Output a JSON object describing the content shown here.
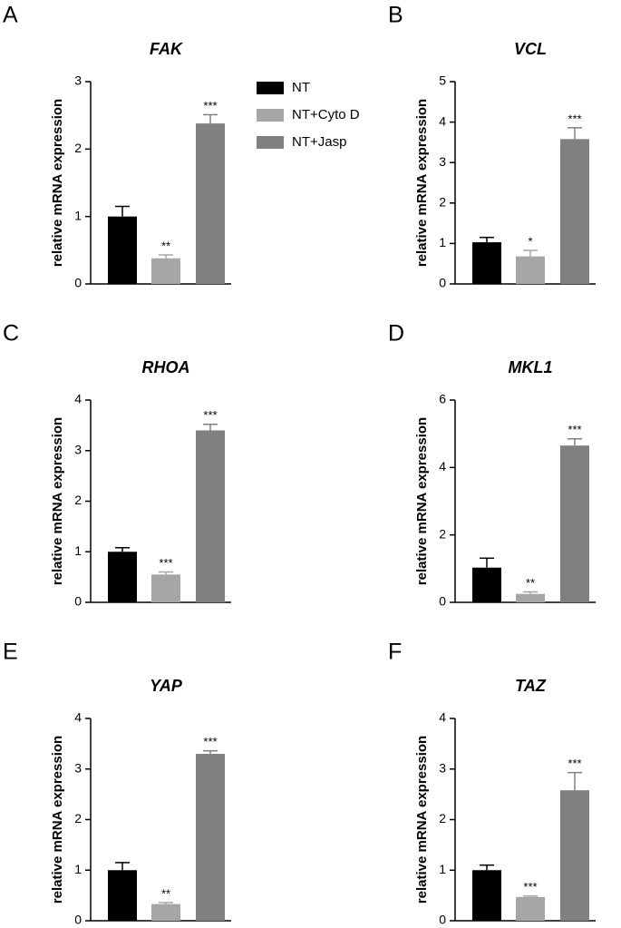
{
  "chart_data": [
    {
      "type": "bar",
      "panel": "A",
      "title": "FAK",
      "ylabel": "relative mRNA expression",
      "ylim": [
        0,
        3
      ],
      "yticks": [
        0,
        1,
        2,
        3
      ],
      "series": [
        {
          "name": "NT",
          "color": "#000000",
          "values": [
            1.0
          ],
          "errors": [
            0.15
          ]
        },
        {
          "name": "NT+Cyto D",
          "color": "#a6a6a6",
          "values": [
            0.38
          ],
          "errors": [
            0.05
          ]
        },
        {
          "name": "NT+Jasp",
          "color": "#808080",
          "values": [
            2.38
          ],
          "errors": [
            0.13
          ]
        }
      ],
      "annotations": [
        null,
        "**",
        "***"
      ]
    },
    {
      "type": "bar",
      "panel": "B",
      "title": "VCL",
      "ylabel": "relative mRNA expression",
      "ylim": [
        0,
        5
      ],
      "yticks": [
        0,
        1,
        2,
        3,
        4,
        5
      ],
      "series": [
        {
          "color": "#000000",
          "values": [
            1.03
          ],
          "errors": [
            0.12
          ]
        },
        {
          "color": "#a6a6a6",
          "values": [
            0.68
          ],
          "errors": [
            0.15
          ]
        },
        {
          "color": "#808080",
          "values": [
            3.58
          ],
          "errors": [
            0.28
          ]
        }
      ],
      "annotations": [
        null,
        "*",
        "***"
      ]
    },
    {
      "type": "bar",
      "panel": "C",
      "title": "RHOA",
      "ylabel": "relative mRNA expression",
      "ylim": [
        0,
        4
      ],
      "yticks": [
        0,
        1,
        2,
        3,
        4
      ],
      "series": [
        {
          "color": "#000000",
          "values": [
            1.0
          ],
          "errors": [
            0.08
          ]
        },
        {
          "color": "#a6a6a6",
          "values": [
            0.55
          ],
          "errors": [
            0.05
          ]
        },
        {
          "color": "#808080",
          "values": [
            3.4
          ],
          "errors": [
            0.12
          ]
        }
      ],
      "annotations": [
        null,
        "***",
        "***"
      ]
    },
    {
      "type": "bar",
      "panel": "D",
      "title": "MKL1",
      "ylabel": "relative mRNA expression",
      "ylim": [
        0,
        6
      ],
      "yticks": [
        0,
        2,
        4,
        6
      ],
      "series": [
        {
          "color": "#000000",
          "values": [
            1.03
          ],
          "errors": [
            0.28
          ]
        },
        {
          "color": "#a6a6a6",
          "values": [
            0.25
          ],
          "errors": [
            0.06
          ]
        },
        {
          "color": "#808080",
          "values": [
            4.65
          ],
          "errors": [
            0.2
          ]
        }
      ],
      "annotations": [
        null,
        "**",
        "***"
      ]
    },
    {
      "type": "bar",
      "panel": "E",
      "title": "YAP",
      "ylabel": "relative mRNA expression",
      "ylim": [
        0,
        4
      ],
      "yticks": [
        0,
        1,
        2,
        3,
        4
      ],
      "series": [
        {
          "color": "#000000",
          "values": [
            1.0
          ],
          "errors": [
            0.15
          ]
        },
        {
          "color": "#a6a6a6",
          "values": [
            0.33
          ],
          "errors": [
            0.03
          ]
        },
        {
          "color": "#808080",
          "values": [
            3.3
          ],
          "errors": [
            0.06
          ]
        }
      ],
      "annotations": [
        null,
        "**",
        "***"
      ]
    },
    {
      "type": "bar",
      "panel": "F",
      "title": "TAZ",
      "ylabel": "relative mRNA expression",
      "ylim": [
        0,
        4
      ],
      "yticks": [
        0,
        1,
        2,
        3,
        4
      ],
      "series": [
        {
          "color": "#000000",
          "values": [
            1.0
          ],
          "errors": [
            0.1
          ]
        },
        {
          "color": "#a6a6a6",
          "values": [
            0.47
          ],
          "errors": [
            0.02
          ]
        },
        {
          "color": "#808080",
          "values": [
            2.58
          ],
          "errors": [
            0.35
          ]
        }
      ],
      "annotations": [
        null,
        "***",
        "***"
      ]
    }
  ]
}
